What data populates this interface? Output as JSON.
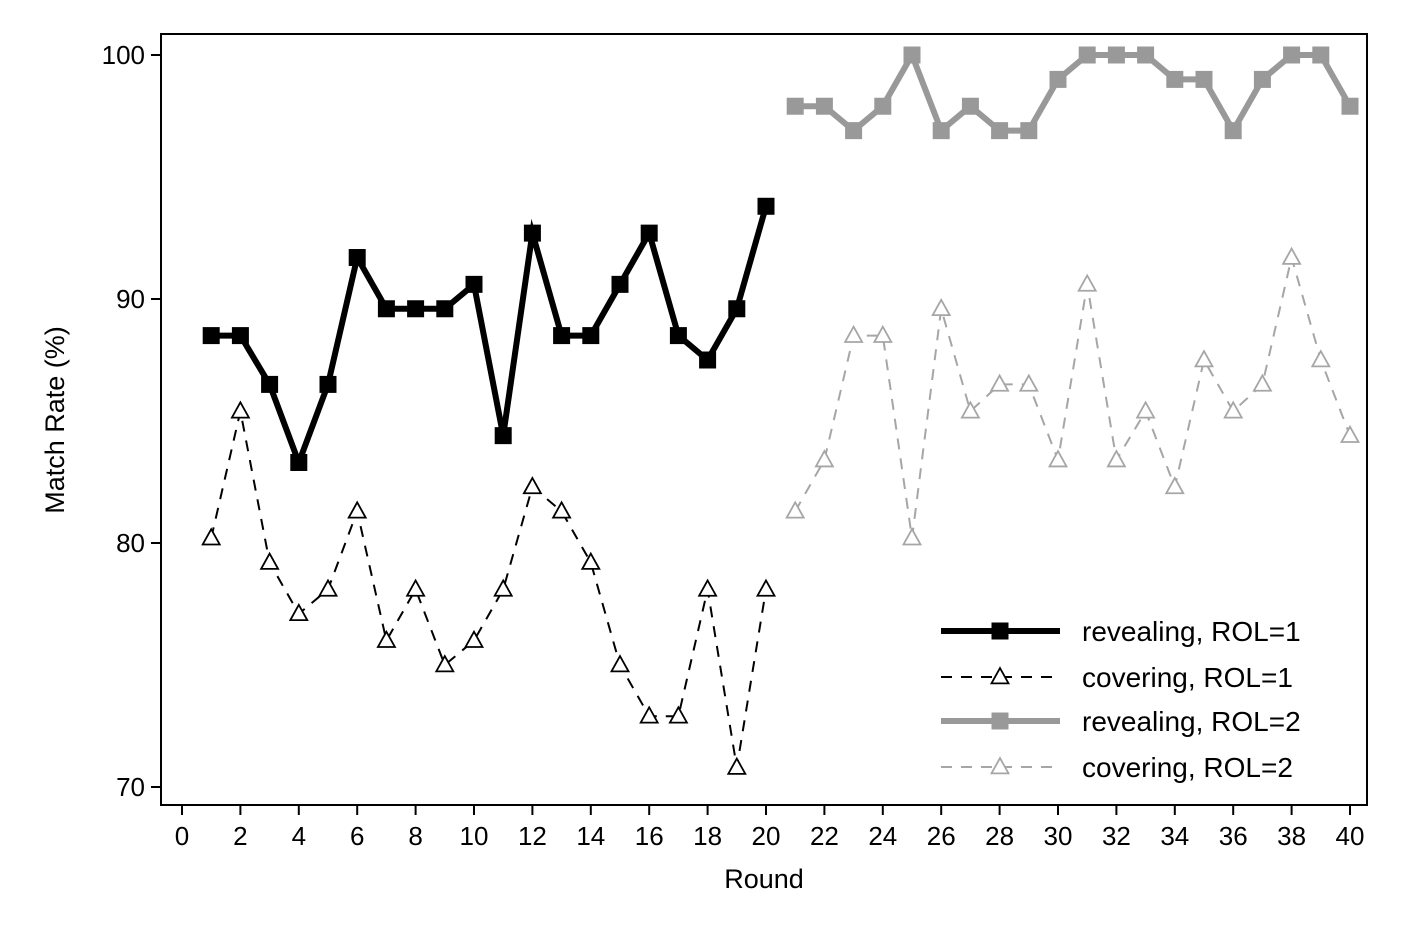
{
  "chart_data": {
    "type": "line",
    "title": "",
    "xlabel": "Round",
    "ylabel": "Match Rate (%)",
    "xlim": [
      0,
      40
    ],
    "ylim": [
      69.2,
      100.8
    ],
    "x_ticks": [
      0,
      2,
      4,
      6,
      8,
      10,
      12,
      14,
      16,
      18,
      20,
      22,
      24,
      26,
      28,
      30,
      32,
      34,
      36,
      38,
      40
    ],
    "y_ticks": [
      70,
      80,
      90,
      100
    ],
    "grid": false,
    "legend_position": "bottom-right",
    "series": [
      {
        "name": "revealing, ROL=1",
        "color": "#000000",
        "style": "solid-thick",
        "marker": "filled-square",
        "x": [
          1,
          2,
          3,
          4,
          5,
          6,
          7,
          8,
          9,
          10,
          11,
          12,
          13,
          14,
          15,
          16,
          17,
          18,
          19,
          20
        ],
        "values": [
          88.5,
          88.5,
          86.5,
          83.3,
          86.5,
          91.7,
          89.6,
          89.6,
          89.6,
          90.6,
          84.4,
          92.7,
          88.5,
          88.5,
          90.6,
          92.7,
          88.5,
          87.5,
          89.6,
          93.8
        ]
      },
      {
        "name": "covering, ROL=1",
        "color": "#000000",
        "style": "dashed-thin",
        "marker": "hollow-triangle",
        "x": [
          1,
          2,
          3,
          4,
          5,
          6,
          7,
          8,
          9,
          10,
          11,
          12,
          13,
          14,
          15,
          16,
          17,
          18,
          19,
          20
        ],
        "values": [
          80.2,
          85.4,
          79.2,
          77.1,
          78.1,
          81.3,
          76.0,
          78.1,
          75.0,
          76.0,
          78.1,
          82.3,
          81.3,
          79.2,
          75.0,
          72.9,
          72.9,
          78.1,
          70.8,
          78.1
        ]
      },
      {
        "name": "revealing, ROL=2",
        "color": "#999999",
        "style": "solid-thick",
        "marker": "filled-square",
        "x": [
          21,
          22,
          23,
          24,
          25,
          26,
          27,
          28,
          29,
          30,
          31,
          32,
          33,
          34,
          35,
          36,
          37,
          38,
          39,
          40
        ],
        "values": [
          97.9,
          97.9,
          96.9,
          97.9,
          100,
          96.9,
          97.9,
          96.9,
          96.9,
          99.0,
          100,
          100,
          100,
          99.0,
          99.0,
          96.9,
          99.0,
          100,
          100,
          97.9
        ]
      },
      {
        "name": "covering, ROL=2",
        "color": "#a6a6a6",
        "style": "dashed-thin",
        "marker": "hollow-triangle",
        "x": [
          21,
          22,
          23,
          24,
          25,
          26,
          27,
          28,
          29,
          30,
          31,
          32,
          33,
          34,
          35,
          36,
          37,
          38,
          39,
          40
        ],
        "values": [
          81.3,
          83.4,
          88.5,
          88.5,
          80.2,
          89.6,
          85.4,
          86.5,
          86.5,
          83.4,
          90.6,
          83.4,
          85.4,
          82.3,
          87.5,
          85.4,
          86.5,
          91.7,
          87.5,
          84.4
        ]
      }
    ]
  }
}
